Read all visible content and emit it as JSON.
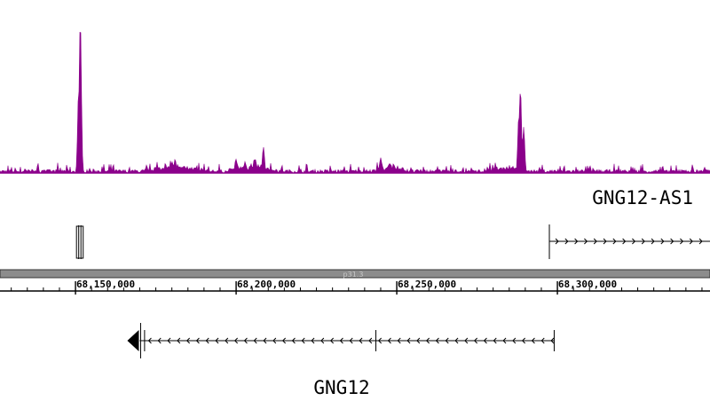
{
  "colors": {
    "signal": "#8b008b",
    "ideogram": "#8c8c8c",
    "ideogram_edge": "#333333",
    "gene": "#000000"
  },
  "track": {
    "peaks": [
      {
        "pos": 68151500,
        "height": 1.0
      },
      {
        "pos": 68151000,
        "height": 0.55
      },
      {
        "pos": 68288500,
        "height": 0.55
      },
      {
        "pos": 68288000,
        "height": 0.38
      },
      {
        "pos": 68289500,
        "height": 0.3
      },
      {
        "pos": 68208500,
        "height": 0.17
      },
      {
        "pos": 68245000,
        "height": 0.1
      },
      {
        "pos": 68200000,
        "height": 0.09
      },
      {
        "pos": 68181000,
        "height": 0.09
      }
    ]
  },
  "ideogram": {
    "band_label": "p31.3"
  },
  "ruler": {
    "range": [
      68126500,
      68347500
    ],
    "ticks": [
      {
        "pos": 68150000,
        "label": "68,150,000"
      },
      {
        "pos": 68200000,
        "label": "68,200,000"
      },
      {
        "pos": 68250000,
        "label": "68,250,000"
      },
      {
        "pos": 68300000,
        "label": "68,300,000"
      }
    ]
  },
  "genes": {
    "upper": {
      "name": "GNG12-AS1",
      "strand": "+",
      "exons": [
        68151000,
        68151700
      ],
      "tx_start": 68297500,
      "tx_end": 68347500
    },
    "lower": {
      "name": "GNG12",
      "strand": "-",
      "tx_start": 68170000,
      "tx_end": 68299000,
      "exon_marks": [
        68171500,
        68243500,
        68299000
      ]
    }
  }
}
